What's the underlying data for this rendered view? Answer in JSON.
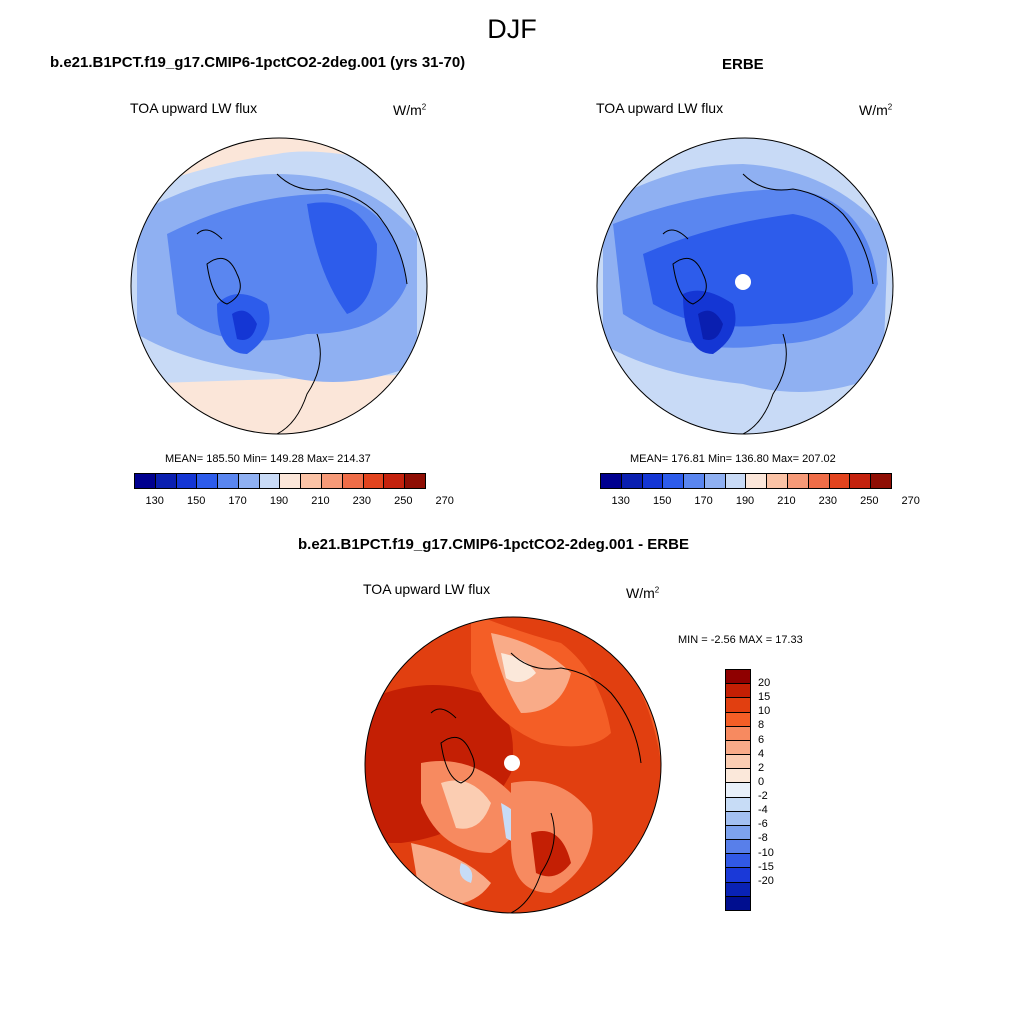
{
  "season": "DJF",
  "panels": [
    {
      "title": "b.e21.B1PCT.f19_g17.CMIP6-1pctCO2-2deg.001 (yrs 31-70)",
      "variable": "TOA upward LW flux",
      "units": "W/m",
      "units_sup": "2",
      "stats": "MEAN= 185.50  Min= 149.28  Max= 214.37"
    },
    {
      "title": "ERBE",
      "variable": "TOA upward LW flux",
      "units": "W/m",
      "units_sup": "2",
      "stats": "MEAN= 176.81  Min= 136.80  Max= 207.02"
    },
    {
      "title": "b.e21.B1PCT.f19_g17.CMIP6-1pctCO2-2deg.001 - ERBE",
      "variable": "TOA upward LW flux",
      "units": "W/m",
      "units_sup": "2",
      "stats": "MIN =  -2.56 MAX =  17.33"
    }
  ],
  "abs_colorbar": {
    "colors": [
      "#00008f",
      "#0a1fb0",
      "#1436d4",
      "#2d5ceb",
      "#5a86f0",
      "#8fb0f2",
      "#c8daf6",
      "#fbe6d9",
      "#fbc3a6",
      "#f69a78",
      "#ef6d48",
      "#e2441e",
      "#c4220d",
      "#8f0e04"
    ],
    "tick_labels": [
      "130",
      "150",
      "170",
      "190",
      "210",
      "230",
      "250",
      "270"
    ]
  },
  "diff_colorbar": {
    "colors": [
      "#8f0000",
      "#c41f04",
      "#e13f10",
      "#f45e26",
      "#f78a60",
      "#f9ab88",
      "#fbcdb2",
      "#fbe8da",
      "#e8f0fa",
      "#c7dcf6",
      "#a3c0f2",
      "#7da2ee",
      "#587fea",
      "#3159e6",
      "#1a39d8",
      "#0922b5",
      "#000e8f"
    ],
    "tick_labels": [
      "20",
      "15",
      "10",
      "8",
      "6",
      "4",
      "2",
      "0",
      "-2",
      "-4",
      "-6",
      "-8",
      "-10",
      "-15",
      "-20"
    ]
  }
}
